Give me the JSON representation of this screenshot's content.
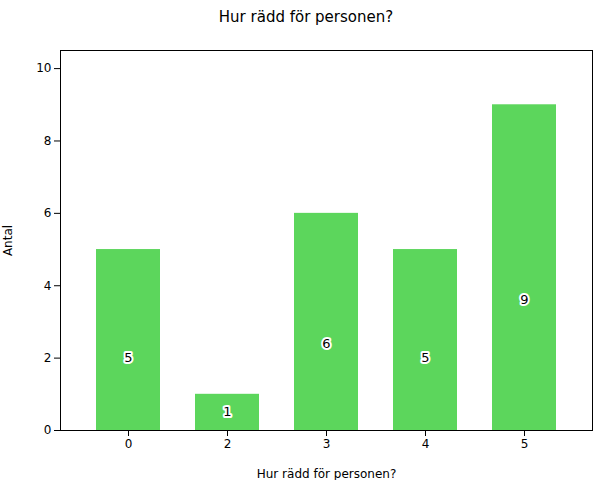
{
  "chart_data": {
    "type": "bar",
    "title": "Hur rädd för personen?",
    "xlabel": "Hur rädd för personen?",
    "ylabel": "Antal",
    "categories": [
      0,
      2,
      3,
      4,
      5
    ],
    "values": [
      5,
      1,
      6,
      5,
      9
    ],
    "color": "#5CD65C",
    "ylim": [
      0,
      10.5
    ],
    "yticks": [
      0,
      2,
      4,
      6,
      8,
      10
    ],
    "grid": false,
    "data_labels": true
  }
}
